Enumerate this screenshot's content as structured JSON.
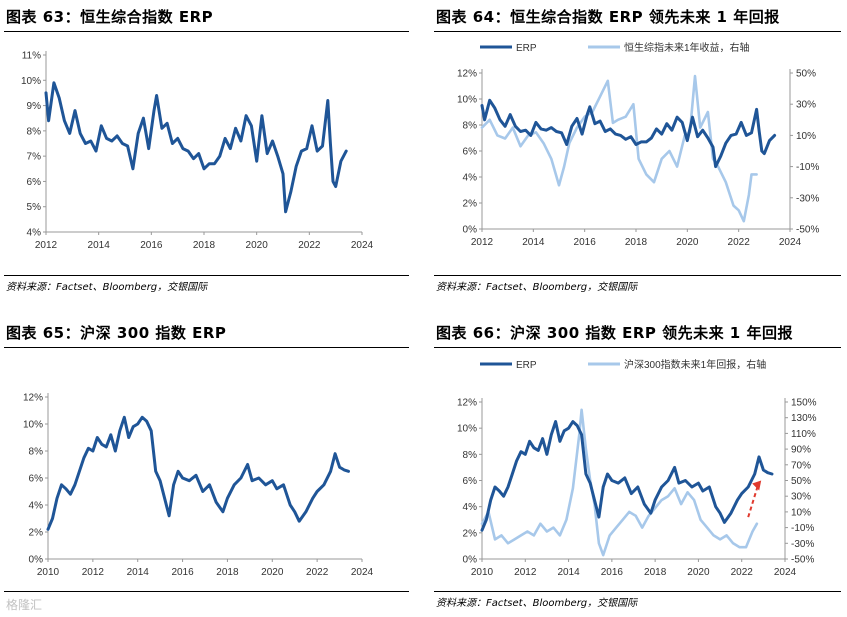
{
  "colors": {
    "dark": "#1f5597",
    "light": "#a7c8ea",
    "arrow": "#e03a2e",
    "axis": "#999999"
  },
  "panels": [
    {
      "title": "图表 63：恒生综合指数 ERP",
      "source": "资料来源：Factset、Bloomberg，交银国际"
    },
    {
      "title": "图表 64：恒生综合指数 ERP 领先未来 1 年回报",
      "source": "资料来源：Factset、Bloomberg，交银国际"
    },
    {
      "title": "图表 65：沪深 300 指数 ERP",
      "source": ""
    },
    {
      "title": "图表 66：沪深 300 指数 ERP 领先未来 1 年回报",
      "source": "资料来源：Factset、Bloomberg，交银国际"
    }
  ],
  "watermark": "格隆汇",
  "chart_data": [
    {
      "type": "line",
      "title": "图表 63：恒生综合指数 ERP",
      "xlim": [
        2012,
        2024
      ],
      "xticks": [
        "2012",
        "2014",
        "2016",
        "2018",
        "2020",
        "2022",
        "2024"
      ],
      "ylim": [
        4,
        11
      ],
      "yticks": [
        "4%",
        "5%",
        "6%",
        "7%",
        "8%",
        "9%",
        "10%",
        "11%"
      ],
      "series": [
        {
          "name": "ERP",
          "axis": "left",
          "x": [
            2012.0,
            2012.1,
            2012.3,
            2012.5,
            2012.7,
            2012.9,
            2013.1,
            2013.3,
            2013.5,
            2013.7,
            2013.9,
            2014.1,
            2014.3,
            2014.5,
            2014.7,
            2014.9,
            2015.1,
            2015.3,
            2015.5,
            2015.7,
            2015.9,
            2016.1,
            2016.2,
            2016.4,
            2016.6,
            2016.8,
            2017.0,
            2017.2,
            2017.4,
            2017.6,
            2017.8,
            2018.0,
            2018.2,
            2018.4,
            2018.6,
            2018.8,
            2019.0,
            2019.2,
            2019.4,
            2019.6,
            2019.8,
            2020.0,
            2020.2,
            2020.4,
            2020.6,
            2020.8,
            2021.0,
            2021.1,
            2021.3,
            2021.5,
            2021.7,
            2021.9,
            2022.1,
            2022.3,
            2022.5,
            2022.7,
            2022.8,
            2022.9,
            2023.0,
            2023.2,
            2023.4
          ],
          "y": [
            9.5,
            8.4,
            9.9,
            9.3,
            8.4,
            7.9,
            8.8,
            7.9,
            7.5,
            7.6,
            7.2,
            8.2,
            7.7,
            7.6,
            7.8,
            7.5,
            7.4,
            6.5,
            7.9,
            8.5,
            7.3,
            8.8,
            9.4,
            8.1,
            8.3,
            7.5,
            7.7,
            7.3,
            7.2,
            6.9,
            7.1,
            6.5,
            6.7,
            6.7,
            7.0,
            7.7,
            7.3,
            8.1,
            7.6,
            8.6,
            8.2,
            6.8,
            8.6,
            7.1,
            7.6,
            7.0,
            6.3,
            4.8,
            5.6,
            6.6,
            7.2,
            7.3,
            8.2,
            7.2,
            7.4,
            9.2,
            7.5,
            6.0,
            5.8,
            6.8,
            7.2
          ]
        }
      ]
    },
    {
      "type": "line",
      "title": "图表 64：恒生综合指数 ERP 领先未来 1 年回报",
      "xlim": [
        2012,
        2024
      ],
      "xticks": [
        "2012",
        "2014",
        "2016",
        "2018",
        "2020",
        "2022",
        "2024"
      ],
      "ylim": [
        0,
        12
      ],
      "yticks": [
        "0%",
        "2%",
        "4%",
        "6%",
        "8%",
        "10%",
        "12%"
      ],
      "y2lim": [
        -50,
        50
      ],
      "y2ticks": [
        "-50%",
        "-30%",
        "-10%",
        "10%",
        "30%",
        "50%"
      ],
      "legend": [
        "ERP",
        "恒生综指未来1年收益，右轴"
      ],
      "series": [
        {
          "name": "ERP",
          "axis": "left",
          "x": [
            2012.0,
            2012.1,
            2012.3,
            2012.5,
            2012.7,
            2012.9,
            2013.1,
            2013.3,
            2013.5,
            2013.7,
            2013.9,
            2014.1,
            2014.3,
            2014.5,
            2014.7,
            2014.9,
            2015.1,
            2015.3,
            2015.5,
            2015.7,
            2015.9,
            2016.1,
            2016.2,
            2016.4,
            2016.6,
            2016.8,
            2017.0,
            2017.2,
            2017.4,
            2017.6,
            2017.8,
            2018.0,
            2018.2,
            2018.4,
            2018.6,
            2018.8,
            2019.0,
            2019.2,
            2019.4,
            2019.6,
            2019.8,
            2020.0,
            2020.2,
            2020.4,
            2020.6,
            2020.8,
            2021.0,
            2021.1,
            2021.3,
            2021.5,
            2021.7,
            2021.9,
            2022.1,
            2022.3,
            2022.5,
            2022.7,
            2022.8,
            2022.9,
            2023.0,
            2023.2,
            2023.4
          ],
          "y": [
            9.5,
            8.4,
            9.9,
            9.3,
            8.4,
            7.9,
            8.8,
            7.9,
            7.5,
            7.6,
            7.2,
            8.2,
            7.7,
            7.6,
            7.8,
            7.5,
            7.4,
            6.5,
            7.9,
            8.5,
            7.3,
            8.8,
            9.4,
            8.1,
            8.3,
            7.5,
            7.7,
            7.3,
            7.2,
            6.9,
            7.1,
            6.5,
            6.7,
            6.7,
            7.0,
            7.7,
            7.3,
            8.1,
            7.6,
            8.6,
            8.2,
            6.8,
            8.6,
            7.1,
            7.6,
            7.0,
            6.3,
            4.8,
            5.6,
            6.6,
            7.2,
            7.3,
            8.2,
            7.2,
            7.4,
            9.2,
            7.5,
            6.0,
            5.8,
            6.8,
            7.2
          ]
        },
        {
          "name": "恒生综指未来1年收益，右轴",
          "axis": "right",
          "x": [
            2012.0,
            2012.3,
            2012.6,
            2012.9,
            2013.2,
            2013.5,
            2013.8,
            2014.1,
            2014.4,
            2014.7,
            2015.0,
            2015.2,
            2015.4,
            2015.7,
            2016.0,
            2016.3,
            2016.6,
            2016.9,
            2017.1,
            2017.3,
            2017.6,
            2017.9,
            2018.1,
            2018.4,
            2018.7,
            2019.0,
            2019.3,
            2019.6,
            2019.9,
            2020.1,
            2020.3,
            2020.5,
            2020.8,
            2021.0,
            2021.2,
            2021.5,
            2021.8,
            2022.0,
            2022.2,
            2022.4,
            2022.5,
            2022.7
          ],
          "y": [
            15,
            20,
            10,
            8,
            15,
            3,
            10,
            12,
            5,
            -5,
            -22,
            -10,
            5,
            15,
            22,
            25,
            35,
            45,
            18,
            20,
            22,
            30,
            -5,
            -15,
            -20,
            -5,
            0,
            -10,
            10,
            12,
            48,
            15,
            25,
            -5,
            -10,
            -20,
            -35,
            -38,
            -45,
            -28,
            -15,
            -15
          ]
        }
      ]
    },
    {
      "type": "line",
      "title": "图表 65：沪深 300 指数 ERP",
      "xlim": [
        2010,
        2024
      ],
      "xticks": [
        "2010",
        "2012",
        "2014",
        "2016",
        "2018",
        "2020",
        "2022",
        "2024"
      ],
      "ylim": [
        0,
        12
      ],
      "yticks": [
        "0%",
        "2%",
        "4%",
        "6%",
        "8%",
        "10%",
        "12%"
      ],
      "series": [
        {
          "name": "ERP",
          "axis": "left",
          "x": [
            2010.0,
            2010.2,
            2010.4,
            2010.6,
            2010.8,
            2011.0,
            2011.2,
            2011.4,
            2011.6,
            2011.8,
            2012.0,
            2012.2,
            2012.4,
            2012.6,
            2012.8,
            2013.0,
            2013.2,
            2013.4,
            2013.6,
            2013.8,
            2014.0,
            2014.2,
            2014.4,
            2014.6,
            2014.8,
            2015.0,
            2015.2,
            2015.4,
            2015.6,
            2015.8,
            2016.0,
            2016.3,
            2016.6,
            2016.9,
            2017.2,
            2017.5,
            2017.8,
            2018.0,
            2018.3,
            2018.6,
            2018.9,
            2019.1,
            2019.4,
            2019.7,
            2020.0,
            2020.2,
            2020.5,
            2020.8,
            2021.0,
            2021.2,
            2021.5,
            2021.8,
            2022.0,
            2022.3,
            2022.6,
            2022.8,
            2023.0,
            2023.2,
            2023.4
          ],
          "y": [
            2.2,
            3.0,
            4.5,
            5.5,
            5.2,
            4.8,
            5.5,
            6.5,
            7.5,
            8.2,
            8.0,
            9.0,
            8.5,
            8.3,
            9.2,
            8.0,
            9.5,
            10.5,
            9.0,
            9.8,
            10.0,
            10.5,
            10.2,
            9.5,
            6.5,
            5.8,
            4.5,
            3.2,
            5.5,
            6.5,
            6.0,
            5.8,
            6.2,
            5.0,
            5.5,
            4.2,
            3.5,
            4.5,
            5.5,
            6.0,
            7.0,
            5.8,
            6.0,
            5.5,
            5.8,
            5.2,
            5.5,
            4.0,
            3.5,
            2.8,
            3.5,
            4.5,
            5.0,
            5.5,
            6.5,
            7.8,
            6.8,
            6.6,
            6.5
          ]
        }
      ]
    },
    {
      "type": "line",
      "title": "图表 66：沪深 300 指数 ERP 领先未来 1 年回报",
      "xlim": [
        2010,
        2024
      ],
      "xticks": [
        "2010",
        "2012",
        "2014",
        "2016",
        "2018",
        "2020",
        "2022",
        "2024"
      ],
      "ylim": [
        0,
        12
      ],
      "yticks": [
        "0%",
        "2%",
        "4%",
        "6%",
        "8%",
        "10%",
        "12%"
      ],
      "y2lim": [
        -50,
        150
      ],
      "y2ticks": [
        "-50%",
        "-30%",
        "-10%",
        "10%",
        "30%",
        "50%",
        "70%",
        "90%",
        "110%",
        "130%",
        "150%"
      ],
      "legend": [
        "ERP",
        "沪深300指数未来1年回报，右轴"
      ],
      "series": [
        {
          "name": "ERP",
          "axis": "left",
          "x": [
            2010.0,
            2010.2,
            2010.4,
            2010.6,
            2010.8,
            2011.0,
            2011.2,
            2011.4,
            2011.6,
            2011.8,
            2012.0,
            2012.2,
            2012.4,
            2012.6,
            2012.8,
            2013.0,
            2013.2,
            2013.4,
            2013.6,
            2013.8,
            2014.0,
            2014.2,
            2014.4,
            2014.6,
            2014.8,
            2015.0,
            2015.2,
            2015.4,
            2015.6,
            2015.8,
            2016.0,
            2016.3,
            2016.6,
            2016.9,
            2017.2,
            2017.5,
            2017.8,
            2018.0,
            2018.3,
            2018.6,
            2018.9,
            2019.1,
            2019.4,
            2019.7,
            2020.0,
            2020.2,
            2020.5,
            2020.8,
            2021.0,
            2021.2,
            2021.5,
            2021.8,
            2022.0,
            2022.3,
            2022.6,
            2022.8,
            2023.0,
            2023.2,
            2023.4
          ],
          "y": [
            2.2,
            3.0,
            4.5,
            5.5,
            5.2,
            4.8,
            5.5,
            6.5,
            7.5,
            8.2,
            8.0,
            9.0,
            8.5,
            8.3,
            9.2,
            8.0,
            9.5,
            10.5,
            9.0,
            9.8,
            10.0,
            10.5,
            10.2,
            9.5,
            6.5,
            5.8,
            4.5,
            3.2,
            5.5,
            6.5,
            6.0,
            5.8,
            6.2,
            5.0,
            5.5,
            4.2,
            3.5,
            4.5,
            5.5,
            6.0,
            7.0,
            5.8,
            6.0,
            5.5,
            5.8,
            5.2,
            5.5,
            4.0,
            3.5,
            2.8,
            3.5,
            4.5,
            5.0,
            5.5,
            6.5,
            7.8,
            6.8,
            6.6,
            6.5
          ]
        },
        {
          "name": "沪深300指数未来1年回报，右轴",
          "axis": "right",
          "x": [
            2010.0,
            2010.3,
            2010.6,
            2010.9,
            2011.2,
            2011.5,
            2011.8,
            2012.1,
            2012.4,
            2012.7,
            2013.0,
            2013.3,
            2013.6,
            2013.9,
            2014.2,
            2014.5,
            2014.6,
            2014.8,
            2015.0,
            2015.2,
            2015.4,
            2015.6,
            2015.9,
            2016.2,
            2016.5,
            2016.8,
            2017.1,
            2017.4,
            2017.7,
            2018.0,
            2018.3,
            2018.6,
            2018.9,
            2019.2,
            2019.5,
            2019.8,
            2020.1,
            2020.4,
            2020.7,
            2021.0,
            2021.3,
            2021.6,
            2021.9,
            2022.2,
            2022.5,
            2022.7
          ],
          "y": [
            -5,
            10,
            -25,
            -20,
            -30,
            -25,
            -20,
            -15,
            -20,
            -5,
            -15,
            -10,
            -20,
            0,
            40,
            110,
            140,
            90,
            50,
            20,
            -30,
            -45,
            -20,
            -10,
            0,
            10,
            5,
            -10,
            5,
            15,
            25,
            30,
            40,
            20,
            35,
            25,
            0,
            -10,
            -20,
            -25,
            -20,
            -30,
            -35,
            -35,
            -15,
            -5
          ]
        }
      ],
      "annotation": "red dashed arrow pointing up (ERP rising)"
    }
  ]
}
